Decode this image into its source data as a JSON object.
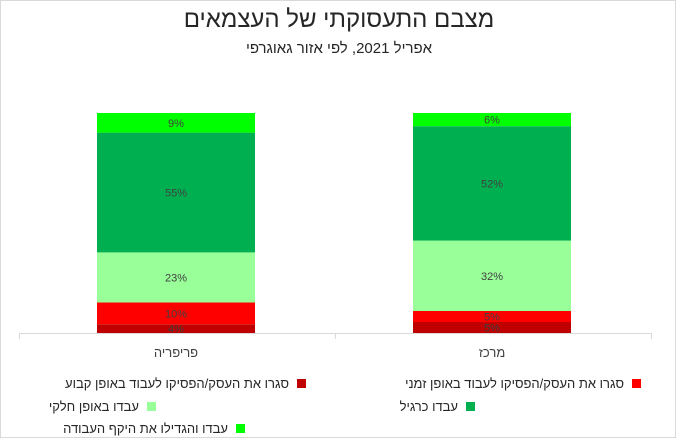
{
  "title": "מצבם התעסוקתי של העצמאים",
  "subtitle": "אפריל 2021, לפי אזור גאוגרפי",
  "chart_data": {
    "type": "bar",
    "stacked": true,
    "percent": true,
    "categories": [
      "מרכז",
      "פריפריה"
    ],
    "series": [
      {
        "name": "סגרו את העסק/הפסיקו לעבוד באופן קבוע",
        "color": "#c00000",
        "values": [
          5,
          4
        ]
      },
      {
        "name": "סגרו את העסק/הפסיקו לעבוד באופן זמני",
        "color": "#ff0000",
        "values": [
          5,
          10
        ]
      },
      {
        "name": "עבדו באופן חלקי",
        "color": "#99ff99",
        "values": [
          32,
          23
        ]
      },
      {
        "name": "עבדו כרגיל",
        "color": "#00b050",
        "values": [
          52,
          55
        ]
      },
      {
        "name": "עבדו והגדילו את היקף העבודה",
        "color": "#00ff00",
        "values": [
          6,
          9
        ]
      }
    ],
    "data_labels": [
      [
        "5%",
        "5%",
        "32%",
        "52%",
        "6%"
      ],
      [
        "4%",
        "10%",
        "23%",
        "55%",
        "9%"
      ]
    ],
    "legend_position": "bottom"
  }
}
